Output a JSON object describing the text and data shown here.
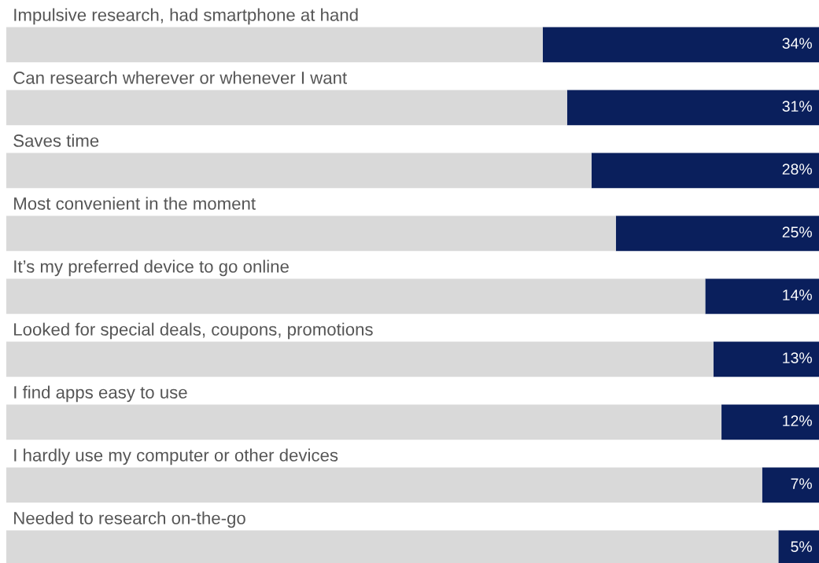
{
  "chart_data": {
    "type": "bar",
    "orientation": "horizontal",
    "stacked": true,
    "categories": [
      "Impulsive research, had smartphone at hand",
      "Can research wherever or whenever I want",
      "Saves time",
      "Most convenient in the moment",
      "It’s my preferred device to go online",
      "Looked for special deals, coupons, promotions",
      "I find apps easy to use",
      "I hardly use my computer or other devices",
      "Needed to research on-the-go"
    ],
    "series": [
      {
        "color": "#0a1f5c",
        "values": [
          34,
          31,
          28,
          25,
          14,
          13,
          12,
          7,
          5
        ],
        "value_labels": [
          "34%",
          "31%",
          "28%",
          "25%",
          "14%",
          "13%",
          "12%",
          "7%",
          "5%"
        ]
      },
      {
        "color": "#d9d9d9",
        "values": [
          66,
          69,
          72,
          75,
          86,
          87,
          88,
          93,
          95
        ]
      }
    ],
    "xlim": [
      100,
      0
    ]
  }
}
